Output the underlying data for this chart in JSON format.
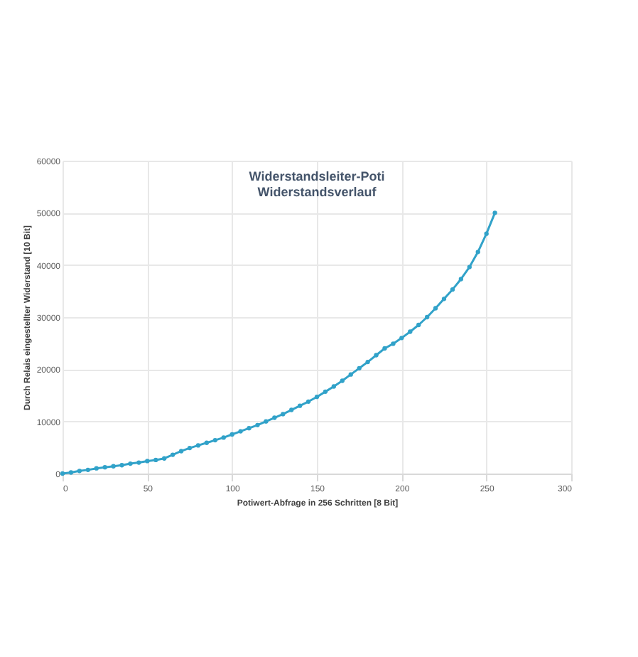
{
  "chart_data": {
    "type": "line",
    "title": [
      "Widerstandsleiter-Poti",
      "Widerstandsverlauf"
    ],
    "xlabel": "Potiwert-Abfrage in 256 Schritten [8 Bit]",
    "ylabel": "Durch Relais eingestellter Widerstand [10 Bit]",
    "x": [
      0,
      5,
      10,
      15,
      20,
      25,
      30,
      35,
      40,
      45,
      50,
      55,
      60,
      65,
      70,
      75,
      80,
      85,
      90,
      95,
      100,
      105,
      110,
      115,
      120,
      125,
      130,
      135,
      140,
      145,
      150,
      155,
      160,
      165,
      170,
      175,
      180,
      185,
      190,
      195,
      200,
      205,
      210,
      215,
      220,
      225,
      230,
      235,
      240,
      245,
      250,
      255
    ],
    "series": [
      {
        "color": "#31a2c9",
        "values": [
          0,
          200,
          500,
          700,
          1000,
          1200,
          1400,
          1600,
          1900,
          2100,
          2400,
          2600,
          2900,
          3600,
          4300,
          4900,
          5400,
          5900,
          6400,
          6900,
          7500,
          8100,
          8700,
          9300,
          10000,
          10700,
          11400,
          12200,
          13000,
          13800,
          14700,
          15700,
          16700,
          17800,
          19000,
          20200,
          21400,
          22700,
          24000,
          24900,
          26000,
          27200,
          28500,
          30000,
          31700,
          33500,
          35300,
          37300,
          39600,
          42500,
          46000,
          50000
        ]
      }
    ],
    "xlim": [
      0,
      300
    ],
    "xticks": [
      0,
      50,
      100,
      150,
      200,
      250,
      300
    ],
    "ylim": [
      0,
      60000
    ],
    "yticks": [
      0,
      10000,
      20000,
      30000,
      40000,
      50000,
      60000
    ],
    "grid": true,
    "marker": "circle",
    "line_style": "solid"
  }
}
